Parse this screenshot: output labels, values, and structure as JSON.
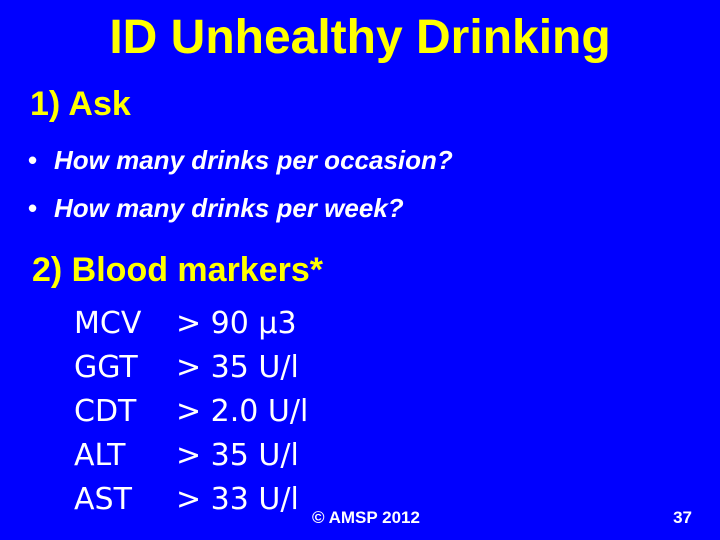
{
  "slide": {
    "title": "ID Unhealthy Drinking",
    "section1_heading": "1) Ask",
    "bullets": [
      "How many drinks per occasion?",
      "How many drinks per week?"
    ],
    "bullet_glyph": "•",
    "section2_heading": "2) Blood markers*",
    "markers": [
      {
        "name": "MCV",
        "value": "> 90 µ3"
      },
      {
        "name": "GGT",
        "value": "> 35 U/l"
      },
      {
        "name": "CDT",
        "value": "> 2.0 U/l"
      },
      {
        "name": "ALT",
        "value": "> 35 U/l"
      },
      {
        "name": "AST",
        "value": "> 33 U/l"
      }
    ],
    "copyright": "© AMSP 2012",
    "page_number": "37"
  },
  "colors": {
    "background": "#0000ff",
    "heading": "#ffff00",
    "body_text": "#ffffff"
  }
}
